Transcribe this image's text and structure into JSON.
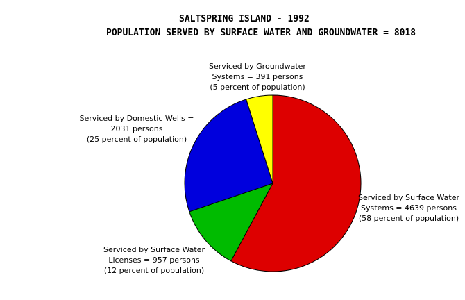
{
  "title": "SALTSPRING ISLAND - 1992",
  "subtitle": "POPULATION SERVED BY SURFACE WATER AND GROUNDWATER = 8018",
  "chart_data": {
    "type": "pie",
    "title": "SALTSPRING ISLAND - 1992",
    "subtitle": "POPULATION SERVED BY SURFACE WATER AND GROUNDWATER = 8018",
    "total": 8018,
    "start_angle_deg": 0,
    "direction": "clockwise",
    "slices": [
      {
        "name": "Serviced by Surface Water Systems",
        "value": 4639,
        "percent": 58,
        "color": "#dd0000",
        "label_lines": [
          "Serviced by Surface Water",
          "Systems = 4639 persons",
          "(58 percent of population)"
        ]
      },
      {
        "name": "Serviced by Surface Water Licenses",
        "value": 957,
        "percent": 12,
        "color": "#00bb00",
        "label_lines": [
          "Serviced by Surface Water",
          "Licenses = 957 persons",
          "(12 percent of population)"
        ]
      },
      {
        "name": "Serviced by Domestic Wells",
        "value": 2031,
        "percent": 25,
        "color": "#0000dd",
        "label_lines": [
          "Serviced by Domestic Wells =",
          "2031 persons",
          "(25 percent of population)"
        ]
      },
      {
        "name": "Serviced by Groundwater Systems",
        "value": 391,
        "percent": 5,
        "color": "#ffff00",
        "label_lines": [
          "Serviced by Groundwater",
          "Systems = 391 persons",
          "(5 percent of population)"
        ]
      }
    ]
  }
}
